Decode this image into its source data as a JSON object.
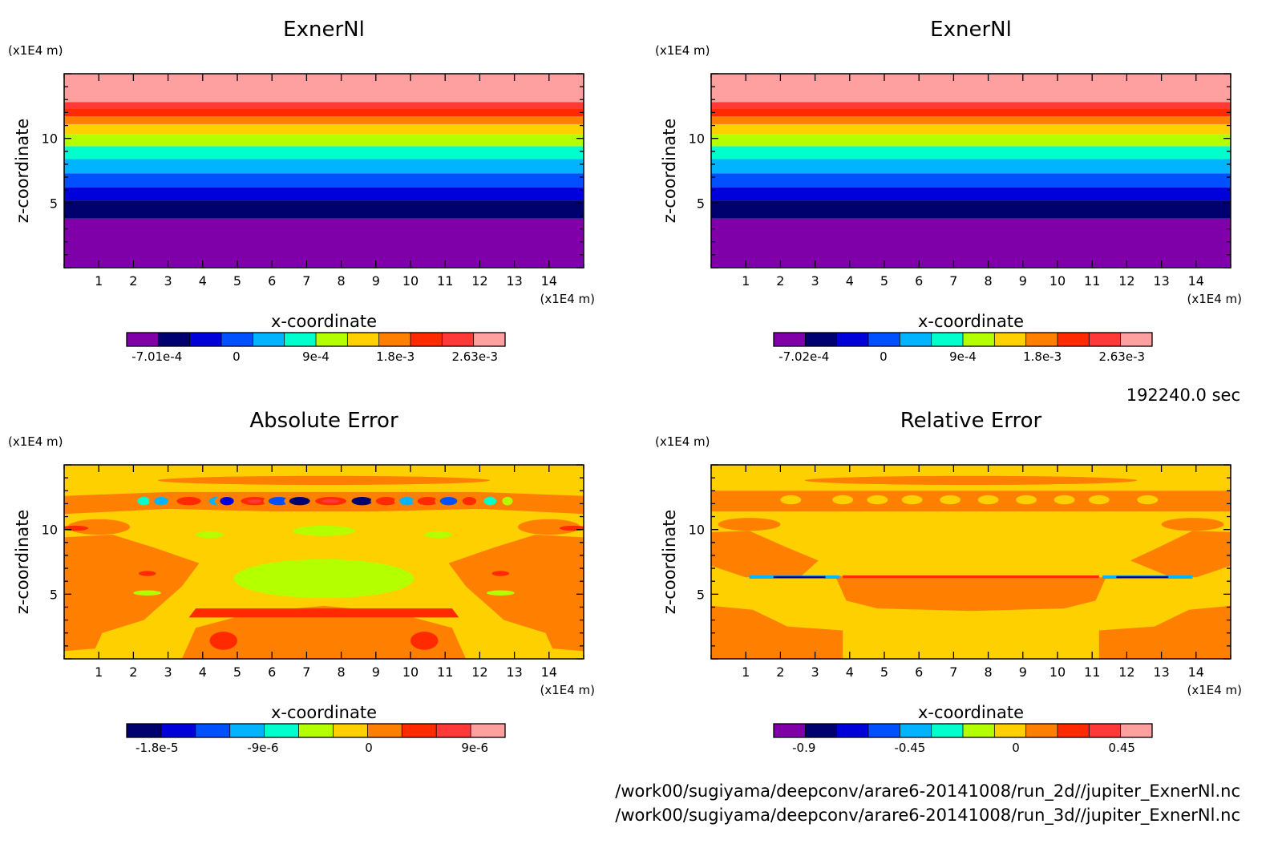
{
  "chart_data": [
    {
      "type": "heatmap",
      "title": "ExnerNl",
      "xlabel": "x-coordinate",
      "ylabel": "z-coordinate",
      "x_unit": "(x1E4 m)",
      "y_unit": "(x1E4 m)",
      "xlim": [
        0,
        15
      ],
      "ylim": [
        0,
        15
      ],
      "xticks": [
        "1",
        "2",
        "3",
        "4",
        "5",
        "6",
        "7",
        "8",
        "9",
        "10",
        "11",
        "12",
        "13",
        "14"
      ],
      "yticks": [
        "5",
        "10"
      ],
      "colorbar": {
        "colors": [
          "#7f00a8",
          "#00006e",
          "#0000dc",
          "#0050ff",
          "#00b4ff",
          "#00ffcc",
          "#b4ff00",
          "#ffd000",
          "#ff8000",
          "#ff2a00",
          "#ff3838",
          "#ffa0a0"
        ],
        "tick_labels": [
          "-7.01e-4",
          "0",
          "9e-4",
          "1.8e-3",
          "2.63e-3"
        ]
      },
      "pattern": "horizontal-layers"
    },
    {
      "type": "heatmap",
      "title": "ExnerNl",
      "xlabel": "x-coordinate",
      "ylabel": "z-coordinate",
      "x_unit": "(x1E4 m)",
      "y_unit": "(x1E4 m)",
      "xlim": [
        0,
        15
      ],
      "ylim": [
        0,
        15
      ],
      "xticks": [
        "1",
        "2",
        "3",
        "4",
        "5",
        "6",
        "7",
        "8",
        "9",
        "10",
        "11",
        "12",
        "13",
        "14"
      ],
      "yticks": [
        "5",
        "10"
      ],
      "colorbar": {
        "colors": [
          "#7f00a8",
          "#00006e",
          "#0000dc",
          "#0050ff",
          "#00b4ff",
          "#00ffcc",
          "#b4ff00",
          "#ffd000",
          "#ff8000",
          "#ff2a00",
          "#ff3838",
          "#ffa0a0"
        ],
        "tick_labels": [
          "-7.02e-4",
          "0",
          "9e-4",
          "1.8e-3",
          "2.63e-3"
        ]
      },
      "pattern": "horizontal-layers"
    },
    {
      "type": "heatmap",
      "title": "Absolute Error",
      "xlabel": "x-coordinate",
      "ylabel": "z-coordinate",
      "x_unit": "(x1E4 m)",
      "y_unit": "(x1E4 m)",
      "xlim": [
        0,
        15
      ],
      "ylim": [
        0,
        15
      ],
      "xticks": [
        "1",
        "2",
        "3",
        "4",
        "5",
        "6",
        "7",
        "8",
        "9",
        "10",
        "11",
        "12",
        "13",
        "14"
      ],
      "yticks": [
        "5",
        "10"
      ],
      "colorbar": {
        "colors": [
          "#00006e",
          "#0000dc",
          "#0050ff",
          "#00b4ff",
          "#00ffcc",
          "#b4ff00",
          "#ffd000",
          "#ff8000",
          "#ff2a00",
          "#ff3838",
          "#ffa0a0"
        ],
        "tick_labels": [
          "-1.8e-5",
          "-9e-6",
          "0",
          "9e-6"
        ]
      },
      "pattern": "absolute-error"
    },
    {
      "type": "heatmap",
      "title": "Relative Error",
      "xlabel": "x-coordinate",
      "ylabel": "z-coordinate",
      "x_unit": "(x1E4 m)",
      "y_unit": "(x1E4 m)",
      "xlim": [
        0,
        15
      ],
      "ylim": [
        0,
        15
      ],
      "xticks": [
        "1",
        "2",
        "3",
        "4",
        "5",
        "6",
        "7",
        "8",
        "9",
        "10",
        "11",
        "12",
        "13",
        "14"
      ],
      "yticks": [
        "5",
        "10"
      ],
      "colorbar": {
        "colors": [
          "#7f00a8",
          "#00006e",
          "#0000dc",
          "#0050ff",
          "#00b4ff",
          "#00ffcc",
          "#b4ff00",
          "#ffd000",
          "#ff8000",
          "#ff2a00",
          "#ff3838",
          "#ffa0a0"
        ],
        "tick_labels": [
          "-0.9",
          "-0.45",
          "0",
          "0.45"
        ]
      },
      "pattern": "relative-error"
    }
  ],
  "footer": {
    "time": "192240.0 sec",
    "paths": [
      "/work00/sugiyama/deepconv/arare6-20141008/run_2d//jupiter_ExnerNl.nc",
      "/work00/sugiyama/deepconv/arare6-20141008/run_3d//jupiter_ExnerNl.nc"
    ]
  }
}
